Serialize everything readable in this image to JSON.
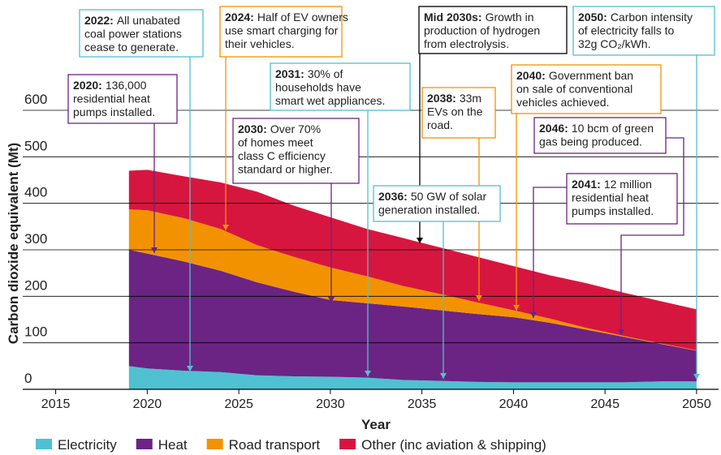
{
  "chart_data": {
    "type": "stacked-area",
    "xlabel": "Year",
    "ylabel": "Carbon dioxide equivalent (Mt)",
    "x": [
      2019,
      2020,
      2022,
      2024,
      2026,
      2028,
      2030,
      2032,
      2034,
      2036,
      2038,
      2040,
      2042,
      2044,
      2046,
      2048,
      2050
    ],
    "series": [
      {
        "name": "Electricity",
        "color": "#4fc1d2",
        "values": [
          50,
          45,
          40,
          37,
          30,
          28,
          27,
          25,
          20,
          18,
          16,
          15,
          15,
          15,
          15,
          17,
          17
        ]
      },
      {
        "name": "Heat",
        "color": "#6b2483",
        "values": [
          250,
          247,
          235,
          218,
          200,
          182,
          165,
          160,
          158,
          152,
          146,
          140,
          128,
          113,
          98,
          81,
          66
        ]
      },
      {
        "name": "Road transport",
        "color": "#f39200",
        "values": [
          87,
          93,
          93,
          90,
          80,
          75,
          70,
          58,
          44,
          35,
          25,
          15,
          9,
          4,
          2,
          1,
          1
        ]
      },
      {
        "name": "Other (inc aviation & shipping)",
        "color": "#d7163f",
        "values": [
          83,
          87,
          90,
          100,
          115,
          110,
          108,
          102,
          103,
          100,
          98,
          95,
          93,
          96,
          93,
          91,
          88
        ]
      }
    ],
    "xlim": [
      2013.2,
      2051.2
    ],
    "xticks": [
      2015,
      2020,
      2025,
      2030,
      2035,
      2040,
      2045,
      2050
    ],
    "ylim": [
      0,
      600
    ],
    "yticks": [
      0,
      100,
      200,
      300,
      400,
      500,
      600
    ],
    "grid": true,
    "annotations": [
      {
        "label": "2022:",
        "text": [
          "All unabated",
          "coal power stations",
          "cease to generate."
        ]
      },
      {
        "label": "2024:",
        "text": [
          "Half of EV owners",
          "use smart charging for",
          "their vehicles."
        ]
      },
      {
        "label": "Mid 2030s:",
        "text": [
          "Growth in",
          "production of hydrogen",
          "from electrolysis."
        ]
      },
      {
        "label": "2050:",
        "text": [
          "Carbon intensity",
          "of electricity falls to",
          "32g CO₂/kWh."
        ]
      },
      {
        "label": "2020:",
        "text": [
          "136,000",
          "residential heat",
          "pumps installed."
        ]
      },
      {
        "label": "2031:",
        "text": [
          "30% of",
          "households have",
          "smart wet appliances."
        ]
      },
      {
        "label": "2038:",
        "text": [
          "33m",
          "EVs on the",
          "road."
        ]
      },
      {
        "label": "2040:",
        "text": [
          "Government ban",
          "on sale of conventional",
          "vehicles achieved."
        ]
      },
      {
        "label": "2030:",
        "text": [
          "Over 70%",
          "of homes meet",
          "class C efficiency",
          "standard or higher."
        ]
      },
      {
        "label": "2046:",
        "text": [
          "10 bcm of green",
          "gas being produced."
        ]
      },
      {
        "label": "2036:",
        "text": [
          "50 GW of solar",
          "generation installed."
        ]
      },
      {
        "label": "2041:",
        "text": [
          "12 million",
          "residential heat",
          "pumps installed."
        ]
      }
    ]
  }
}
